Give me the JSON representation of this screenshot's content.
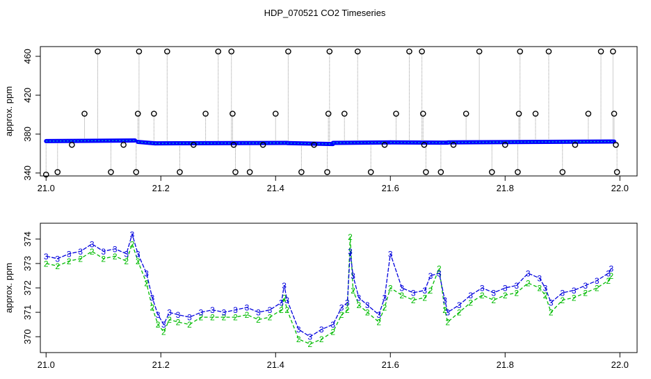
{
  "page": {
    "title": "HDP_070521  CO2 Timeseries"
  },
  "chart_data": [
    {
      "type": "scatter",
      "title": "HDP_070521  CO2 Timeseries",
      "xlabel": "",
      "ylabel": "approx. ppm",
      "xlim": [
        20.99,
        22.03
      ],
      "ylim": [
        337,
        470
      ],
      "xticks": [
        21.0,
        21.2,
        21.4,
        21.6,
        21.8,
        22.0
      ],
      "xtick_labels": [
        "21.0",
        "21.2",
        "21.4",
        "21.6",
        "21.8",
        "22.0"
      ],
      "yticks": [
        340,
        380,
        420,
        460
      ],
      "ytick_labels": [
        "340",
        "380",
        "420",
        "460"
      ],
      "grid": false,
      "colors": {
        "spikes": "#000000",
        "baseline": "#0000ff",
        "secondary": "#00cccc",
        "drop_line": "#999999"
      },
      "baseline_segments": [
        {
          "x0": 21.0,
          "x1": 21.155,
          "y0": 372.8,
          "y1": 373.5
        },
        {
          "x0": 21.16,
          "x1": 21.19,
          "y0": 372,
          "y1": 370.5
        },
        {
          "x0": 21.19,
          "x1": 21.42,
          "y0": 370.5,
          "y1": 371
        },
        {
          "x0": 21.42,
          "x1": 21.5,
          "y0": 370.8,
          "y1": 369.8
        },
        {
          "x0": 21.5,
          "x1": 21.6,
          "y0": 371,
          "y1": 371.5
        },
        {
          "x0": 21.6,
          "x1": 21.7,
          "y0": 371.5,
          "y1": 371.2
        },
        {
          "x0": 21.7,
          "x1": 21.99,
          "y0": 371.5,
          "y1": 372.4
        }
      ],
      "spikes": [
        {
          "x": 21.0,
          "y": 337
        },
        {
          "x": 21.02,
          "y": 341
        },
        {
          "x": 21.045,
          "y": 369
        },
        {
          "x": 21.067,
          "y": 401
        },
        {
          "x": 21.09,
          "y": 465
        },
        {
          "x": 21.113,
          "y": 341
        },
        {
          "x": 21.135,
          "y": 369
        },
        {
          "x": 21.157,
          "y": 341
        },
        {
          "x": 21.16,
          "y": 401
        },
        {
          "x": 21.162,
          "y": 465
        },
        {
          "x": 21.188,
          "y": 401
        },
        {
          "x": 21.211,
          "y": 465
        },
        {
          "x": 21.233,
          "y": 341
        },
        {
          "x": 21.257,
          "y": 369
        },
        {
          "x": 21.278,
          "y": 401
        },
        {
          "x": 21.3,
          "y": 465
        },
        {
          "x": 21.323,
          "y": 465
        },
        {
          "x": 21.325,
          "y": 401
        },
        {
          "x": 21.327,
          "y": 369
        },
        {
          "x": 21.33,
          "y": 341
        },
        {
          "x": 21.355,
          "y": 341
        },
        {
          "x": 21.378,
          "y": 369
        },
        {
          "x": 21.4,
          "y": 401
        },
        {
          "x": 21.422,
          "y": 465
        },
        {
          "x": 21.445,
          "y": 341
        },
        {
          "x": 21.467,
          "y": 369
        },
        {
          "x": 21.49,
          "y": 341
        },
        {
          "x": 21.492,
          "y": 401
        },
        {
          "x": 21.494,
          "y": 465
        },
        {
          "x": 21.52,
          "y": 401
        },
        {
          "x": 21.543,
          "y": 465
        },
        {
          "x": 21.566,
          "y": 341
        },
        {
          "x": 21.59,
          "y": 369
        },
        {
          "x": 21.61,
          "y": 401
        },
        {
          "x": 21.633,
          "y": 465
        },
        {
          "x": 21.655,
          "y": 465
        },
        {
          "x": 21.657,
          "y": 401
        },
        {
          "x": 21.659,
          "y": 369
        },
        {
          "x": 21.662,
          "y": 341
        },
        {
          "x": 21.688,
          "y": 341
        },
        {
          "x": 21.71,
          "y": 369
        },
        {
          "x": 21.732,
          "y": 401
        },
        {
          "x": 21.755,
          "y": 465
        },
        {
          "x": 21.777,
          "y": 341
        },
        {
          "x": 21.8,
          "y": 369
        },
        {
          "x": 21.822,
          "y": 341
        },
        {
          "x": 21.824,
          "y": 401
        },
        {
          "x": 21.826,
          "y": 465
        },
        {
          "x": 21.853,
          "y": 401
        },
        {
          "x": 21.876,
          "y": 465
        },
        {
          "x": 21.9,
          "y": 341
        },
        {
          "x": 21.922,
          "y": 369
        },
        {
          "x": 21.945,
          "y": 401
        },
        {
          "x": 21.967,
          "y": 465
        },
        {
          "x": 21.988,
          "y": 465
        },
        {
          "x": 21.99,
          "y": 401
        },
        {
          "x": 21.993,
          "y": 369
        },
        {
          "x": 21.995,
          "y": 341
        }
      ]
    },
    {
      "type": "line",
      "title": "",
      "xlabel": "",
      "ylabel": "approx. ppm",
      "xlim": [
        20.99,
        22.03
      ],
      "ylim": [
        369.35,
        374.65
      ],
      "xticks": [
        21.0,
        21.2,
        21.4,
        21.6,
        21.8,
        22.0
      ],
      "xtick_labels": [
        "21.0",
        "21.2",
        "21.4",
        "21.6",
        "21.8",
        "22.0"
      ],
      "yticks": [
        370,
        371,
        372,
        373,
        374
      ],
      "ytick_labels": [
        "370",
        "371",
        "372",
        "373",
        "374"
      ],
      "grid": false,
      "series": [
        {
          "marker": "3",
          "color": "#0000dd",
          "x": [
            21.0,
            21.02,
            21.04,
            21.06,
            21.08,
            21.1,
            21.12,
            21.14,
            21.15,
            21.16,
            21.175,
            21.185,
            21.195,
            21.205,
            21.215,
            21.23,
            21.25,
            21.27,
            21.29,
            21.31,
            21.33,
            21.35,
            21.37,
            21.39,
            21.41,
            21.415,
            21.42,
            21.44,
            21.46,
            21.48,
            21.5,
            21.515,
            21.525,
            21.53,
            21.535,
            21.545,
            21.56,
            21.58,
            21.59,
            21.6,
            21.62,
            21.64,
            21.66,
            21.67,
            21.685,
            21.695,
            21.7,
            21.72,
            21.74,
            21.76,
            21.78,
            21.8,
            21.82,
            21.84,
            21.86,
            21.87,
            21.88,
            21.9,
            21.92,
            21.94,
            21.96,
            21.98,
            21.985
          ],
          "y": [
            373.3,
            373.2,
            373.4,
            373.5,
            373.8,
            373.5,
            373.6,
            373.4,
            374.2,
            373.4,
            372.6,
            371.6,
            370.9,
            370.5,
            371.0,
            370.9,
            370.8,
            371.0,
            371.1,
            371.0,
            371.1,
            371.2,
            371.0,
            371.1,
            371.4,
            372.1,
            371.5,
            370.3,
            370.0,
            370.3,
            370.5,
            371.2,
            371.4,
            373.5,
            372.5,
            371.6,
            371.3,
            370.9,
            371.6,
            373.4,
            372.0,
            371.8,
            371.9,
            372.5,
            372.6,
            371.5,
            371.0,
            371.3,
            371.7,
            372.0,
            371.8,
            372.0,
            372.1,
            372.6,
            372.4,
            372.0,
            371.4,
            371.8,
            371.9,
            372.1,
            372.3,
            372.6,
            372.8
          ]
        },
        {
          "marker": "2",
          "color": "#00bb00",
          "x": [
            21.0,
            21.02,
            21.04,
            21.06,
            21.08,
            21.1,
            21.12,
            21.14,
            21.15,
            21.16,
            21.175,
            21.185,
            21.195,
            21.205,
            21.215,
            21.23,
            21.25,
            21.27,
            21.29,
            21.31,
            21.33,
            21.35,
            21.37,
            21.39,
            21.41,
            21.415,
            21.42,
            21.44,
            21.46,
            21.48,
            21.5,
            21.515,
            21.525,
            21.53,
            21.535,
            21.545,
            21.56,
            21.58,
            21.59,
            21.6,
            21.62,
            21.64,
            21.66,
            21.67,
            21.685,
            21.695,
            21.7,
            21.72,
            21.74,
            21.76,
            21.78,
            21.8,
            21.82,
            21.84,
            21.86,
            21.87,
            21.88,
            21.9,
            21.92,
            21.94,
            21.96,
            21.98,
            21.985
          ],
          "y": [
            373.0,
            372.9,
            373.1,
            373.2,
            373.5,
            373.2,
            373.3,
            373.1,
            373.8,
            373.1,
            372.2,
            371.2,
            370.5,
            370.2,
            370.7,
            370.6,
            370.5,
            370.8,
            370.8,
            370.8,
            370.8,
            370.9,
            370.7,
            370.8,
            371.1,
            371.6,
            371.1,
            369.9,
            369.7,
            369.9,
            370.2,
            370.9,
            371.1,
            374.1,
            371.9,
            371.3,
            371.0,
            370.6,
            371.2,
            372.0,
            371.7,
            371.5,
            371.6,
            371.9,
            372.8,
            371.1,
            370.6,
            371.0,
            371.4,
            371.7,
            371.5,
            371.7,
            371.8,
            372.2,
            372.0,
            371.7,
            371.0,
            371.5,
            371.6,
            371.8,
            372.0,
            372.3,
            372.5
          ]
        }
      ]
    }
  ]
}
